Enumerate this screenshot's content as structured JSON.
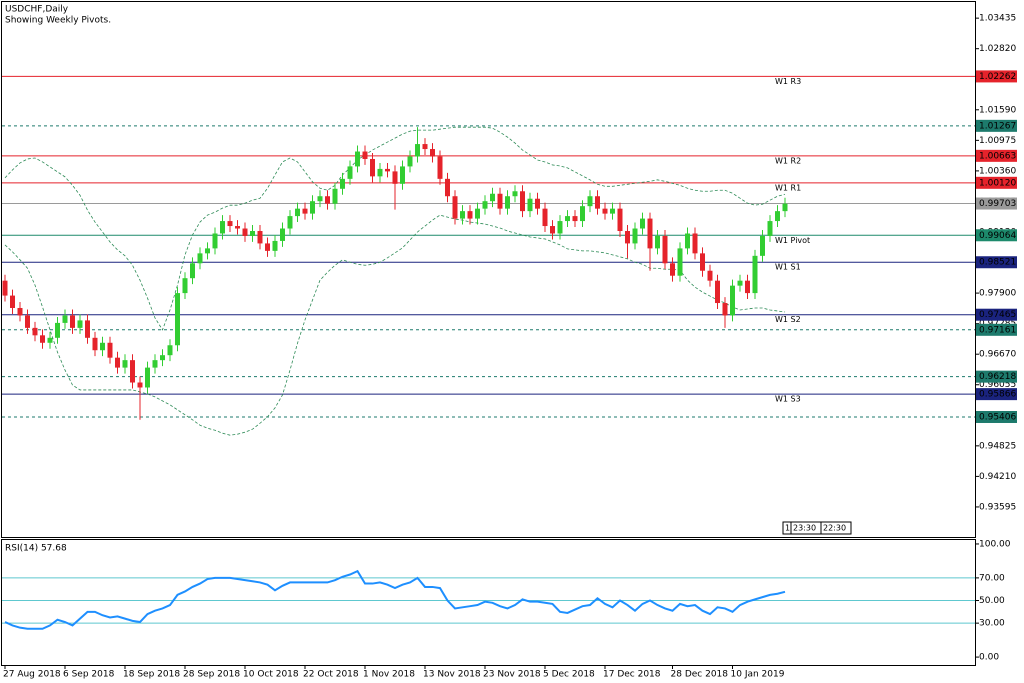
{
  "chart_data": [
    {
      "type": "candlestick",
      "title": "USDCHF,Daily",
      "subtitle": "Showing Weekly Pivots.",
      "categories": [
        "27 Aug 2018",
        null,
        null,
        null,
        null,
        null,
        null,
        null,
        "6 Sep 2018",
        null,
        null,
        null,
        null,
        null,
        null,
        null,
        "18 Sep 2018",
        null,
        null,
        null,
        null,
        null,
        null,
        null,
        "28 Sep 2018",
        null,
        null,
        null,
        null,
        null,
        null,
        null,
        "10 Oct 2018",
        null,
        null,
        null,
        null,
        null,
        null,
        null,
        "22 Oct 2018",
        null,
        null,
        null,
        null,
        null,
        null,
        null,
        "1 Nov 2018",
        null,
        null,
        null,
        null,
        null,
        null,
        null,
        "13 Nov 2018",
        null,
        null,
        null,
        null,
        null,
        null,
        null,
        "23 Nov 2018",
        null,
        null,
        null,
        null,
        null,
        null,
        null,
        "5 Dec 2018",
        null,
        null,
        null,
        null,
        null,
        null,
        null,
        "17 Dec 2018",
        null,
        null,
        null,
        null,
        null,
        null,
        null,
        null,
        "28 Dec 2018",
        null,
        null,
        null,
        null,
        null,
        null,
        null,
        "10 Jan 2019",
        null,
        null,
        null,
        null,
        null,
        null,
        null
      ],
      "open": [
        0.9815,
        0.9785,
        0.976,
        0.9745,
        0.972,
        0.9705,
        0.969,
        0.97,
        0.973,
        0.9745,
        0.972,
        0.9735,
        0.97,
        0.9675,
        0.969,
        0.966,
        0.964,
        0.9655,
        0.961,
        0.96,
        0.964,
        0.9655,
        0.9665,
        0.9685,
        0.979,
        0.982,
        0.985,
        0.987,
        0.988,
        0.991,
        0.9935,
        0.9925,
        0.992,
        0.9905,
        0.9915,
        0.989,
        0.9875,
        0.9895,
        0.992,
        0.9945,
        0.996,
        0.995,
        0.9975,
        0.9985,
        0.997,
        1.0,
        1.002,
        1.0045,
        1.0075,
        1.006,
        1.0025,
        1.004,
        1.0035,
        1.001,
        1.0045,
        1.0065,
        1.009,
        1.008,
        1.0065,
        1.002,
        0.9985,
        0.994,
        0.9955,
        0.994,
        0.996,
        0.9975,
        0.999,
        0.996,
        0.9985,
        0.9995,
        0.9955,
        0.998,
        0.996,
        0.9925,
        0.991,
        0.9935,
        0.9945,
        0.9935,
        0.9965,
        0.9985,
        0.996,
        0.995,
        0.996,
        0.9915,
        0.989,
        0.992,
        0.994,
        0.988,
        0.9905,
        0.985,
        0.9825,
        0.988,
        0.991,
        0.987,
        0.9835,
        0.9815,
        0.977,
        0.9745,
        0.9805,
        0.9815,
        0.979,
        0.9865,
        0.9905,
        0.9935,
        0.9955
      ],
      "high": [
        0.9827,
        0.9797,
        0.9772,
        0.9757,
        0.9732,
        0.9717,
        0.9712,
        0.9742,
        0.9757,
        0.9757,
        0.9747,
        0.9747,
        0.9712,
        0.9702,
        0.9702,
        0.9672,
        0.9667,
        0.9667,
        0.9622,
        0.9652,
        0.9667,
        0.9677,
        0.9697,
        0.9802,
        0.9832,
        0.9862,
        0.9882,
        0.9892,
        0.9922,
        0.9947,
        0.9947,
        0.9937,
        0.9932,
        0.9927,
        0.9927,
        0.9902,
        0.9907,
        0.9932,
        0.9957,
        0.9972,
        0.9972,
        0.9987,
        0.9997,
        0.9997,
        1.0012,
        1.0032,
        1.0057,
        1.0087,
        1.0087,
        1.0072,
        1.0052,
        1.0052,
        1.0047,
        1.0057,
        1.0077,
        1.0124,
        1.0102,
        1.0092,
        1.0077,
        1.0032,
        0.9997,
        0.9967,
        0.9967,
        0.9972,
        0.9987,
        1.0002,
        1.0002,
        0.9997,
        1.0007,
        1.0007,
        0.9992,
        0.9992,
        0.9972,
        0.9937,
        0.9947,
        0.9957,
        0.9957,
        0.9977,
        0.9997,
        0.9997,
        0.9972,
        0.9972,
        0.9972,
        0.9927,
        0.9932,
        0.9952,
        0.9952,
        0.9917,
        0.9917,
        0.9862,
        0.9892,
        0.9922,
        0.9922,
        0.9882,
        0.9847,
        0.9827,
        0.9782,
        0.9817,
        0.9827,
        0.9827,
        0.9877,
        0.9917,
        0.9947,
        0.9967,
        0.9982
      ],
      "low": [
        0.9773,
        0.9748,
        0.9733,
        0.9708,
        0.9693,
        0.9678,
        0.9678,
        0.9688,
        0.9718,
        0.9708,
        0.9708,
        0.9688,
        0.9663,
        0.9663,
        0.9648,
        0.9628,
        0.9628,
        0.9598,
        0.9535,
        0.9588,
        0.9628,
        0.9643,
        0.9653,
        0.9673,
        0.9778,
        0.9808,
        0.9838,
        0.9858,
        0.9868,
        0.9898,
        0.9913,
        0.9908,
        0.9893,
        0.9893,
        0.9878,
        0.9863,
        0.9863,
        0.9883,
        0.9908,
        0.9933,
        0.9938,
        0.9938,
        0.9963,
        0.9958,
        0.9958,
        0.9988,
        1.0008,
        1.0033,
        1.0048,
        1.0013,
        1.0013,
        1.0023,
        0.9958,
        0.9998,
        1.0033,
        1.0053,
        1.0068,
        1.0053,
        1.0008,
        0.9973,
        0.9928,
        0.9928,
        0.9928,
        0.9928,
        0.9948,
        0.9963,
        0.9948,
        0.9948,
        0.9973,
        0.9943,
        0.9943,
        0.9948,
        0.9913,
        0.9898,
        0.9898,
        0.9923,
        0.9923,
        0.9923,
        0.9953,
        0.9948,
        0.9938,
        0.9938,
        0.9903,
        0.986,
        0.9878,
        0.9908,
        0.9835,
        0.9868,
        0.9838,
        0.9813,
        0.9813,
        0.9868,
        0.9858,
        0.9823,
        0.9803,
        0.9758,
        0.972,
        0.9733,
        0.9793,
        0.9778,
        0.9778,
        0.9853,
        0.9893,
        0.9923,
        0.9943
      ],
      "close": [
        0.9785,
        0.976,
        0.9745,
        0.972,
        0.9705,
        0.969,
        0.97,
        0.973,
        0.9745,
        0.972,
        0.9735,
        0.97,
        0.9675,
        0.969,
        0.966,
        0.964,
        0.9655,
        0.961,
        0.96,
        0.964,
        0.9655,
        0.9665,
        0.9685,
        0.979,
        0.982,
        0.985,
        0.987,
        0.988,
        0.991,
        0.9935,
        0.9925,
        0.992,
        0.9905,
        0.9915,
        0.989,
        0.9875,
        0.9895,
        0.992,
        0.9945,
        0.996,
        0.995,
        0.9975,
        0.9985,
        0.997,
        1.0,
        1.002,
        1.0045,
        1.0075,
        1.006,
        1.0025,
        1.004,
        1.0035,
        1.001,
        1.0045,
        1.0065,
        1.009,
        1.008,
        1.0065,
        1.002,
        0.9985,
        0.994,
        0.9955,
        0.994,
        0.996,
        0.9975,
        0.999,
        0.996,
        0.9985,
        0.9995,
        0.9955,
        0.998,
        0.996,
        0.9925,
        0.991,
        0.9935,
        0.9945,
        0.9935,
        0.9965,
        0.9985,
        0.996,
        0.995,
        0.996,
        0.9915,
        0.989,
        0.992,
        0.994,
        0.988,
        0.9905,
        0.985,
        0.9825,
        0.988,
        0.991,
        0.987,
        0.9835,
        0.9815,
        0.977,
        0.9745,
        0.9805,
        0.9815,
        0.979,
        0.9865,
        0.9905,
        0.9935,
        0.9955,
        0.997
      ],
      "up_color": "#32cd32",
      "down_color": "#e5232b",
      "bands": {
        "color": "#2e8b57",
        "upper": [
          1.0022,
          1.0038,
          1.0052,
          1.006,
          1.0062,
          1.0054,
          1.0044,
          1.0034,
          1.0024,
          1.0007,
          0.9987,
          0.9957,
          0.9933,
          0.9913,
          0.9893,
          0.9877,
          0.9865,
          0.9846,
          0.9816,
          0.978,
          0.974,
          0.9716,
          0.9756,
          0.9806,
          0.9867,
          0.9907,
          0.9933,
          0.9947,
          0.9953,
          0.9961,
          0.9967,
          0.9967,
          0.9971,
          0.9977,
          0.9981,
          1.0001,
          1.0028,
          1.0054,
          1.0062,
          1.0054,
          1.0034,
          1.0014,
          1.0001,
          0.9997,
          1.0007,
          1.0028,
          1.0042,
          1.0058,
          1.0068,
          1.0078,
          1.0086,
          1.0094,
          1.0102,
          1.011,
          1.0116,
          1.0118,
          1.0118,
          1.0118,
          1.012,
          1.0122,
          1.0124,
          1.0124,
          1.0124,
          1.0124,
          1.0124,
          1.0122,
          1.0114,
          1.0104,
          1.0092,
          1.0078,
          1.0068,
          1.0058,
          1.0054,
          1.0048,
          1.0046,
          1.0042,
          1.0034,
          1.0026,
          1.0018,
          1.0009,
          1.0005,
          1.0005,
          1.0007,
          1.0009,
          1.0011,
          1.0013,
          1.0015,
          1.0018,
          1.0015,
          1.0011,
          1.0007,
          1.0001,
          0.9997,
          0.9995,
          0.9995,
          0.9997,
          0.9997,
          0.9991,
          0.9981,
          0.9971,
          0.9967,
          0.9969,
          0.9977,
          0.9985,
          0.9989
        ],
        "lower": [
          0.9887,
          0.9873,
          0.9857,
          0.984,
          0.9806,
          0.9762,
          0.9716,
          0.9671,
          0.9635,
          0.9605,
          0.9595,
          0.9595,
          0.9595,
          0.9595,
          0.9595,
          0.9595,
          0.9595,
          0.9595,
          0.9591,
          0.9587,
          0.9581,
          0.9573,
          0.9565,
          0.9555,
          0.9545,
          0.9535,
          0.9524,
          0.9518,
          0.9514,
          0.9508,
          0.9504,
          0.9506,
          0.951,
          0.9516,
          0.9528,
          0.9541,
          0.9559,
          0.9585,
          0.9635,
          0.9689,
          0.9736,
          0.9776,
          0.9816,
          0.9832,
          0.9846,
          0.9857,
          0.9852,
          0.9848,
          0.9846,
          0.9848,
          0.9852,
          0.9861,
          0.9871,
          0.9881,
          0.9897,
          0.9913,
          0.9925,
          0.9937,
          0.9947,
          0.9943,
          0.9939,
          0.9937,
          0.9933,
          0.9931,
          0.9929,
          0.9925,
          0.9921,
          0.9915,
          0.9911,
          0.9907,
          0.9903,
          0.9901,
          0.9899,
          0.9893,
          0.9887,
          0.9879,
          0.9877,
          0.9875,
          0.9875,
          0.9873,
          0.9871,
          0.9867,
          0.9863,
          0.9859,
          0.9852,
          0.9848,
          0.984,
          0.984,
          0.9838,
          0.9838,
          0.9836,
          0.9816,
          0.9802,
          0.9792,
          0.9784,
          0.9776,
          0.977,
          0.9762,
          0.9756,
          0.9758,
          0.976,
          0.976,
          0.9756,
          0.9754,
          0.9752
        ]
      },
      "levels": [
        {
          "value": 1.02262,
          "value_label": "1.02262",
          "name": "W1 R3",
          "color": "#e5232b",
          "dash": false
        },
        {
          "value": 1.01267,
          "value_label": "1.01267",
          "color": "#1d7a6c",
          "dash": true
        },
        {
          "value": 1.00663,
          "value_label": "1.00663",
          "name": "W1 R2",
          "color": "#e5232b",
          "dash": false
        },
        {
          "value": 1.0012,
          "value_label": "1.00120",
          "name": "W1 R1",
          "color": "#e5232b",
          "dash": false
        },
        {
          "value": 0.99703,
          "value_label": "0.99703",
          "color": "#9a9a9a",
          "dash": false
        },
        {
          "value": 0.99064,
          "value_label": "0.99064",
          "name": "W1 Pivot",
          "color": "#1d8a6c",
          "dash": false
        },
        {
          "value": 0.98521,
          "value_label": "0.98521",
          "name": "W1 S1",
          "color": "#1a237e",
          "dash": false
        },
        {
          "value": 0.97465,
          "value_label": "0.97465",
          "name": "W1 S2",
          "color": "#1a237e",
          "dash": false
        },
        {
          "value": 0.97161,
          "value_label": "0.97161",
          "color": "#1d7a6c",
          "dash": true
        },
        {
          "value": 0.96218,
          "value_label": "0.96218",
          "color": "#1d7a6c",
          "dash": true
        },
        {
          "value": 0.95866,
          "value_label": "0.95866",
          "name": "W1 S3",
          "color": "#1a237e",
          "dash": false
        },
        {
          "value": 0.95406,
          "value_label": "0.95406",
          "color": "#1d7a6c",
          "dash": true
        }
      ],
      "ylim": [
        0.9299,
        1.0376
      ],
      "yticks": [
        1.03435,
        {
          "value": 1.0282,
          "label": "1.02820"
        },
        1.02205,
        {
          "value": 1.0159,
          "label": "1.01590"
        },
        1.00975,
        {
          "value": 1.0036,
          "label": "1.00360"
        },
        0.99745,
        {
          "value": 0.9913,
          "label": "0.99130"
        },
        0.98515,
        {
          "value": 0.979,
          "label": "0.97900"
        },
        0.97285,
        {
          "value": 0.9667,
          "label": "0.96670"
        },
        0.96055,
        {
          "value": 0.9544,
          "label": "0.95440"
        },
        0.94825,
        {
          "value": 0.9421,
          "label": "0.94210"
        },
        0.93595
      ],
      "annotations": [
        "1",
        "23:30",
        "22:30"
      ]
    },
    {
      "type": "line",
      "title": "RSI(14) 57.68",
      "series": [
        {
          "name": "RSI(14)",
          "color": "#1e8fff",
          "values": [
            31,
            28,
            26,
            25,
            25,
            25,
            28,
            33,
            31,
            28,
            34,
            40,
            40,
            37,
            35,
            36,
            34,
            32,
            31,
            38,
            41,
            43,
            46,
            55,
            58,
            62,
            65,
            69,
            70,
            70,
            70,
            69,
            68,
            67,
            66,
            64,
            59,
            63,
            66,
            66,
            66,
            66,
            66,
            66,
            68,
            71,
            73,
            76,
            65,
            65,
            66,
            64,
            61,
            64,
            66,
            70,
            62,
            62,
            61,
            50,
            43,
            44,
            45,
            46,
            49,
            48,
            45,
            43,
            46,
            51,
            49,
            49,
            48,
            47,
            40,
            39,
            42,
            45,
            46,
            52,
            47,
            44,
            50,
            46,
            41,
            47,
            50,
            46,
            43,
            41,
            47,
            45,
            46,
            41,
            38,
            44,
            43,
            40,
            46,
            49,
            51,
            53,
            55,
            56,
            57.68
          ]
        }
      ],
      "levels": [
        70,
        50,
        30
      ],
      "level_color": "#5ec8cf",
      "ylim": [
        -7,
        103.5
      ],
      "yticks": [
        {
          "value": 100,
          "label": "100.00"
        },
        {
          "value": 70,
          "label": "70.00"
        },
        {
          "value": 50,
          "label": "50.00"
        },
        {
          "value": 30,
          "label": "30.00"
        },
        {
          "value": 0,
          "label": "0.00"
        }
      ]
    }
  ]
}
